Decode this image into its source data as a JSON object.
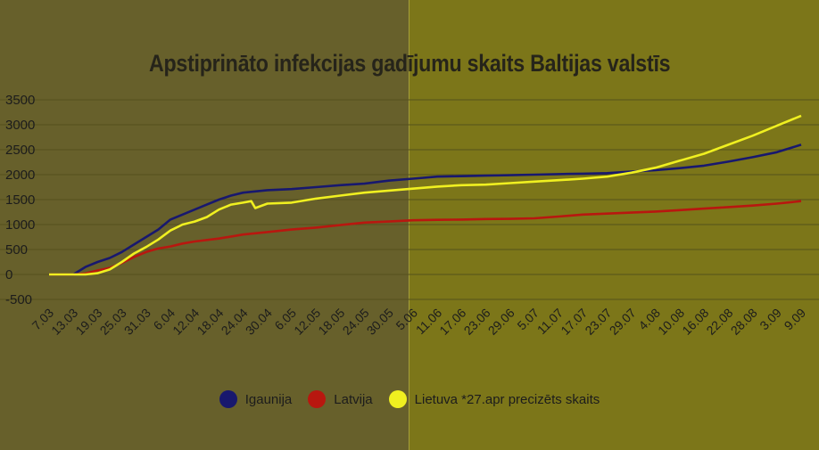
{
  "chart_data": {
    "type": "line",
    "title": "Apstiprināto infekcijas gadījumu skaits Baltijas valstīs",
    "xlabel": "",
    "ylabel": "",
    "ylim": [
      -500,
      3500
    ],
    "yticks": [
      3500,
      3000,
      2500,
      2000,
      1500,
      1000,
      500,
      0,
      -500
    ],
    "ytick_labels": [
      "3500",
      "3000",
      "2500",
      "2000",
      "1500",
      "1000",
      "500",
      "0",
      "-500"
    ],
    "xtick_labels": [
      "7.03",
      "13.03",
      "19.03",
      "25.03",
      "31.03",
      "6.04",
      "12.04",
      "18.04",
      "24.04",
      "30.04",
      "6.05",
      "12.05",
      "18.05",
      "24.05",
      "30.05",
      "5.06",
      "11.06",
      "17.06",
      "23.06",
      "29.06",
      "5.07",
      "11.07",
      "17.07",
      "23.07",
      "29.07",
      "4.08",
      "10.08",
      "16.08",
      "22.08",
      "28.08",
      "3.09",
      "9.09"
    ],
    "x_start": "2020-03-07",
    "x_end": "2020-09-09",
    "grid": true,
    "legend_position": "bottom",
    "series": [
      {
        "name": "Igaunija",
        "color": "#18186e",
        "points": [
          [
            "2020-03-07",
            0
          ],
          [
            "2020-03-13",
            0
          ],
          [
            "2020-03-16",
            150
          ],
          [
            "2020-03-19",
            250
          ],
          [
            "2020-03-22",
            330
          ],
          [
            "2020-03-25",
            450
          ],
          [
            "2020-03-28",
            600
          ],
          [
            "2020-03-31",
            750
          ],
          [
            "2020-04-03",
            900
          ],
          [
            "2020-04-06",
            1100
          ],
          [
            "2020-04-09",
            1200
          ],
          [
            "2020-04-12",
            1300
          ],
          [
            "2020-04-15",
            1400
          ],
          [
            "2020-04-18",
            1500
          ],
          [
            "2020-04-21",
            1580
          ],
          [
            "2020-04-24",
            1640
          ],
          [
            "2020-04-30",
            1690
          ],
          [
            "2020-05-06",
            1710
          ],
          [
            "2020-05-12",
            1750
          ],
          [
            "2020-05-18",
            1790
          ],
          [
            "2020-05-24",
            1820
          ],
          [
            "2020-05-30",
            1880
          ],
          [
            "2020-06-05",
            1920
          ],
          [
            "2020-06-11",
            1960
          ],
          [
            "2020-06-17",
            1970
          ],
          [
            "2020-06-23",
            1980
          ],
          [
            "2020-06-29",
            1990
          ],
          [
            "2020-07-05",
            2000
          ],
          [
            "2020-07-11",
            2010
          ],
          [
            "2020-07-17",
            2020
          ],
          [
            "2020-07-23",
            2030
          ],
          [
            "2020-07-29",
            2060
          ],
          [
            "2020-08-04",
            2090
          ],
          [
            "2020-08-10",
            2130
          ],
          [
            "2020-08-16",
            2180
          ],
          [
            "2020-08-22",
            2260
          ],
          [
            "2020-08-28",
            2350
          ],
          [
            "2020-09-03",
            2450
          ],
          [
            "2020-09-09",
            2600
          ]
        ]
      },
      {
        "name": "Latvija",
        "color": "#b8170f",
        "points": [
          [
            "2020-03-07",
            0
          ],
          [
            "2020-03-13",
            0
          ],
          [
            "2020-03-16",
            20
          ],
          [
            "2020-03-19",
            80
          ],
          [
            "2020-03-22",
            130
          ],
          [
            "2020-03-25",
            230
          ],
          [
            "2020-03-28",
            350
          ],
          [
            "2020-03-31",
            450
          ],
          [
            "2020-04-03",
            520
          ],
          [
            "2020-04-06",
            560
          ],
          [
            "2020-04-09",
            620
          ],
          [
            "2020-04-12",
            660
          ],
          [
            "2020-04-18",
            720
          ],
          [
            "2020-04-24",
            800
          ],
          [
            "2020-04-30",
            850
          ],
          [
            "2020-05-06",
            900
          ],
          [
            "2020-05-12",
            940
          ],
          [
            "2020-05-18",
            990
          ],
          [
            "2020-05-24",
            1040
          ],
          [
            "2020-05-30",
            1060
          ],
          [
            "2020-06-05",
            1085
          ],
          [
            "2020-06-11",
            1095
          ],
          [
            "2020-06-17",
            1100
          ],
          [
            "2020-06-23",
            1110
          ],
          [
            "2020-06-29",
            1115
          ],
          [
            "2020-07-05",
            1125
          ],
          [
            "2020-07-11",
            1160
          ],
          [
            "2020-07-17",
            1200
          ],
          [
            "2020-07-23",
            1220
          ],
          [
            "2020-07-29",
            1240
          ],
          [
            "2020-08-04",
            1260
          ],
          [
            "2020-08-10",
            1290
          ],
          [
            "2020-08-16",
            1320
          ],
          [
            "2020-08-22",
            1350
          ],
          [
            "2020-08-28",
            1380
          ],
          [
            "2020-09-03",
            1420
          ],
          [
            "2020-09-09",
            1470
          ]
        ]
      },
      {
        "name": "Lietuva *27.apr precizēts skaits",
        "color": "#f0f020",
        "points": [
          [
            "2020-03-07",
            0
          ],
          [
            "2020-03-13",
            0
          ],
          [
            "2020-03-16",
            0
          ],
          [
            "2020-03-19",
            25
          ],
          [
            "2020-03-22",
            100
          ],
          [
            "2020-03-25",
            250
          ],
          [
            "2020-03-28",
            420
          ],
          [
            "2020-03-31",
            550
          ],
          [
            "2020-04-03",
            700
          ],
          [
            "2020-04-06",
            880
          ],
          [
            "2020-04-09",
            1000
          ],
          [
            "2020-04-12",
            1060
          ],
          [
            "2020-04-15",
            1150
          ],
          [
            "2020-04-18",
            1300
          ],
          [
            "2020-04-21",
            1400
          ],
          [
            "2020-04-24",
            1440
          ],
          [
            "2020-04-26",
            1470
          ],
          [
            "2020-04-27",
            1330
          ],
          [
            "2020-04-30",
            1420
          ],
          [
            "2020-05-06",
            1440
          ],
          [
            "2020-05-12",
            1520
          ],
          [
            "2020-05-18",
            1580
          ],
          [
            "2020-05-24",
            1640
          ],
          [
            "2020-05-30",
            1680
          ],
          [
            "2020-06-05",
            1720
          ],
          [
            "2020-06-11",
            1760
          ],
          [
            "2020-06-17",
            1790
          ],
          [
            "2020-06-23",
            1800
          ],
          [
            "2020-06-29",
            1830
          ],
          [
            "2020-07-05",
            1860
          ],
          [
            "2020-07-11",
            1890
          ],
          [
            "2020-07-17",
            1920
          ],
          [
            "2020-07-23",
            1960
          ],
          [
            "2020-07-29",
            2040
          ],
          [
            "2020-08-04",
            2140
          ],
          [
            "2020-08-10",
            2280
          ],
          [
            "2020-08-16",
            2420
          ],
          [
            "2020-08-22",
            2600
          ],
          [
            "2020-08-28",
            2780
          ],
          [
            "2020-09-03",
            2980
          ],
          [
            "2020-09-09",
            3180
          ]
        ]
      }
    ]
  }
}
